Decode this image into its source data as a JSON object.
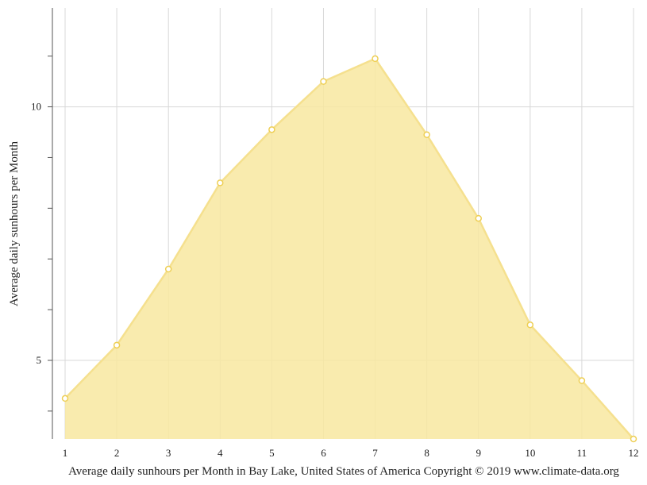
{
  "chart_data": {
    "type": "area",
    "x": [
      1,
      2,
      3,
      4,
      5,
      6,
      7,
      8,
      9,
      10,
      11,
      12
    ],
    "values": [
      4.25,
      5.3,
      6.8,
      8.5,
      9.55,
      10.5,
      10.95,
      9.45,
      7.8,
      5.7,
      4.6,
      3.45
    ],
    "ylabel": "Average daily sunhours per Month",
    "xlabel": "",
    "caption": "Average daily sunhours per Month in Bay Lake, United States of America Copyright © 2019 www.climate-data.org",
    "ylim": [
      3.45,
      11.95
    ],
    "y_major_ticks": [
      5,
      10
    ],
    "y_minor_ticks": [
      4,
      6,
      7,
      8,
      9,
      11
    ],
    "x_ticks": [
      1,
      2,
      3,
      4,
      5,
      6,
      7,
      8,
      9,
      10,
      11,
      12
    ],
    "grid": true,
    "colors": {
      "fill": "#f8e8a0",
      "line": "#f5e08e",
      "marker_stroke": "#eecf55",
      "marker_fill": "#ffffff",
      "grid": "#d8d8d8",
      "axis": "#555555"
    }
  }
}
